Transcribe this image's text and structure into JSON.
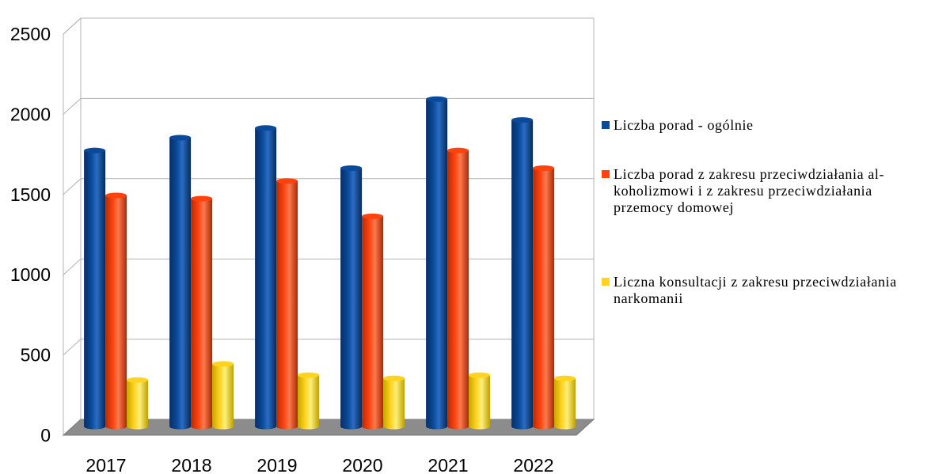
{
  "chart_data": {
    "type": "bar",
    "title": "",
    "xlabel": "",
    "ylabel": "",
    "categories": [
      "2017",
      "2018",
      "2019",
      "2020",
      "2021",
      "2022"
    ],
    "ylim": [
      0,
      2500
    ],
    "yticks": [
      "0",
      "500",
      "1000",
      "1500",
      "2000",
      "2500"
    ],
    "grid": true,
    "legend_position": "right",
    "series": [
      {
        "name": "Liczba porad - ogólnie",
        "color": "#0b4a9a",
        "values": [
          1720,
          1800,
          1860,
          1610,
          2040,
          1910
        ]
      },
      {
        "name": "Liczba porad z zakresu przeciwdziałania al-koholizmowi i z zakresu przeciwdziałania przemocy domowej",
        "color": "#ff420e",
        "values": [
          1440,
          1420,
          1530,
          1310,
          1720,
          1610
        ]
      },
      {
        "name": "Liczna konsultacji z zakresu przeciwdziałania narkomanii",
        "color": "#ffd320",
        "values": [
          290,
          390,
          320,
          300,
          320,
          300
        ]
      }
    ]
  }
}
